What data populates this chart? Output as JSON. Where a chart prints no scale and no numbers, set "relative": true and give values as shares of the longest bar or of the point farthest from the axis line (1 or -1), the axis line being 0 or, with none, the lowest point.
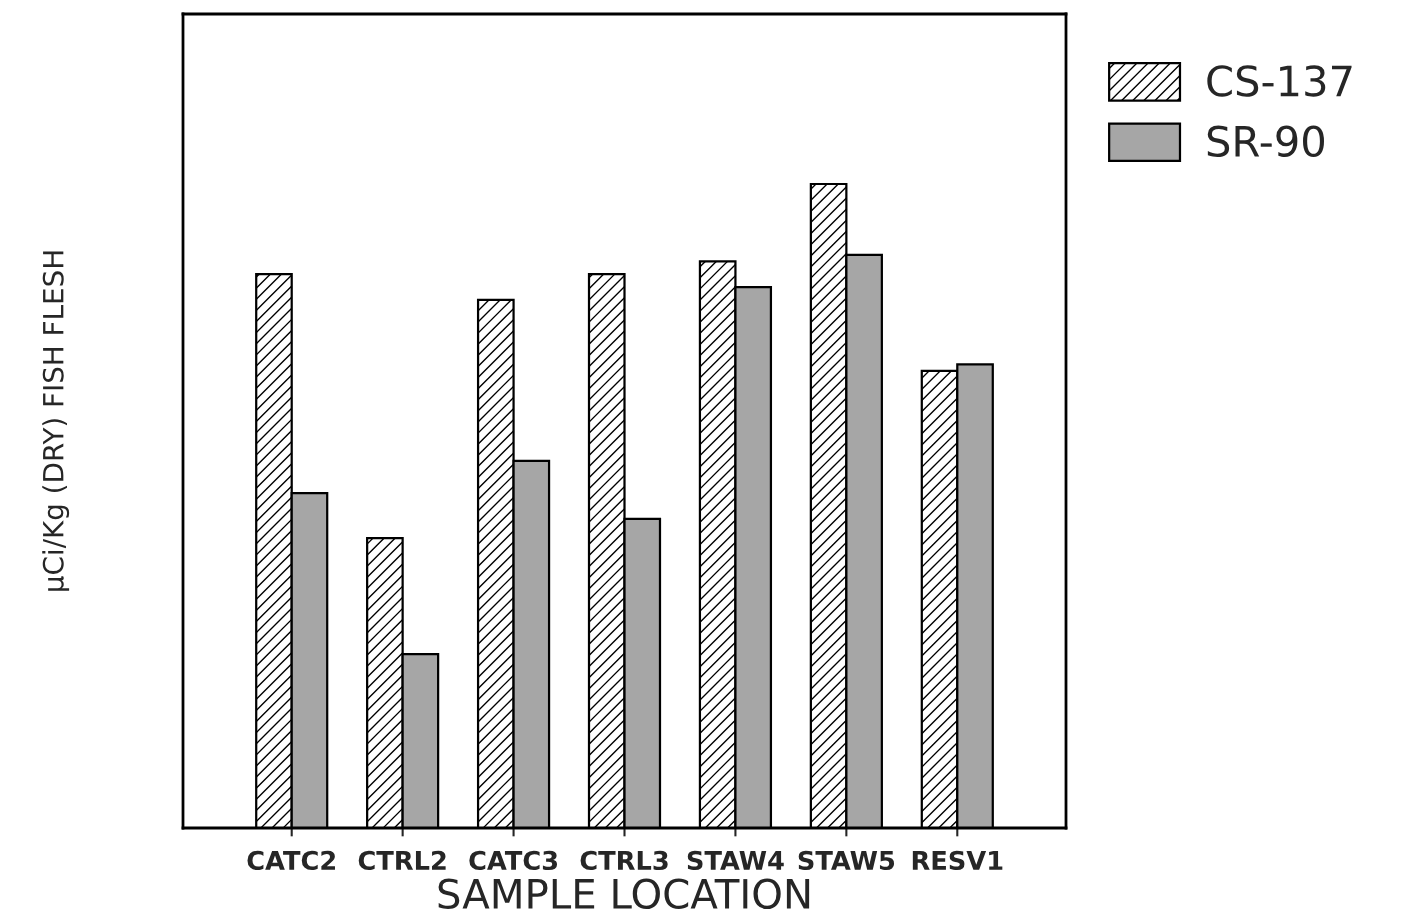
{
  "chart_data": {
    "type": "bar",
    "xlabel": "SAMPLE LOCATION",
    "ylabel": "μCi/Kg (DRY) FISH FLESH",
    "categories": [
      "CATC2",
      "CTRL2",
      "CATC3",
      "CTRL3",
      "STAW4",
      "STAW5",
      "RESV1"
    ],
    "relative": true,
    "series": [
      {
        "name": "CS-137",
        "color": "#000000",
        "values": [
          0.86,
          0.45,
          0.82,
          0.86,
          0.88,
          1,
          0.71
        ]
      },
      {
        "name": "SR-90",
        "color": "#a6a6a6",
        "values": [
          0.52,
          0.27,
          0.57,
          0.48,
          0.84,
          0.89,
          0.72
        ]
      }
    ],
    "legend": "top right"
  }
}
